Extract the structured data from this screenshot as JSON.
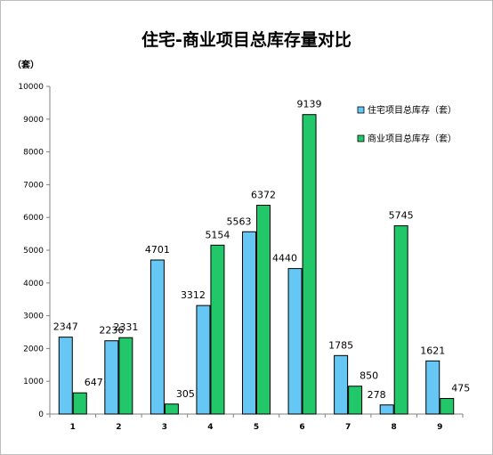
{
  "chart_data": {
    "type": "bar",
    "title": "住宅-商业项目总库存量对比",
    "ylabel": "（套）",
    "xlabel": "",
    "ylim": [
      0,
      10000
    ],
    "yticks": [
      0,
      1000,
      2000,
      3000,
      4000,
      5000,
      6000,
      7000,
      8000,
      9000,
      10000
    ],
    "categories": [
      "1",
      "2",
      "3",
      "4",
      "5",
      "6",
      "7",
      "8",
      "9"
    ],
    "series": [
      {
        "name": "住宅项目总库存（套）",
        "color": "#66c7f4",
        "values": [
          2347,
          2236,
          4701,
          3312,
          5563,
          4440,
          1785,
          278,
          1621
        ]
      },
      {
        "name": "商业项目总库存（套）",
        "color": "#22c76a",
        "values": [
          647,
          2331,
          305,
          5154,
          6372,
          9139,
          850,
          5745,
          475
        ]
      }
    ],
    "grid": false,
    "legend": "right"
  }
}
